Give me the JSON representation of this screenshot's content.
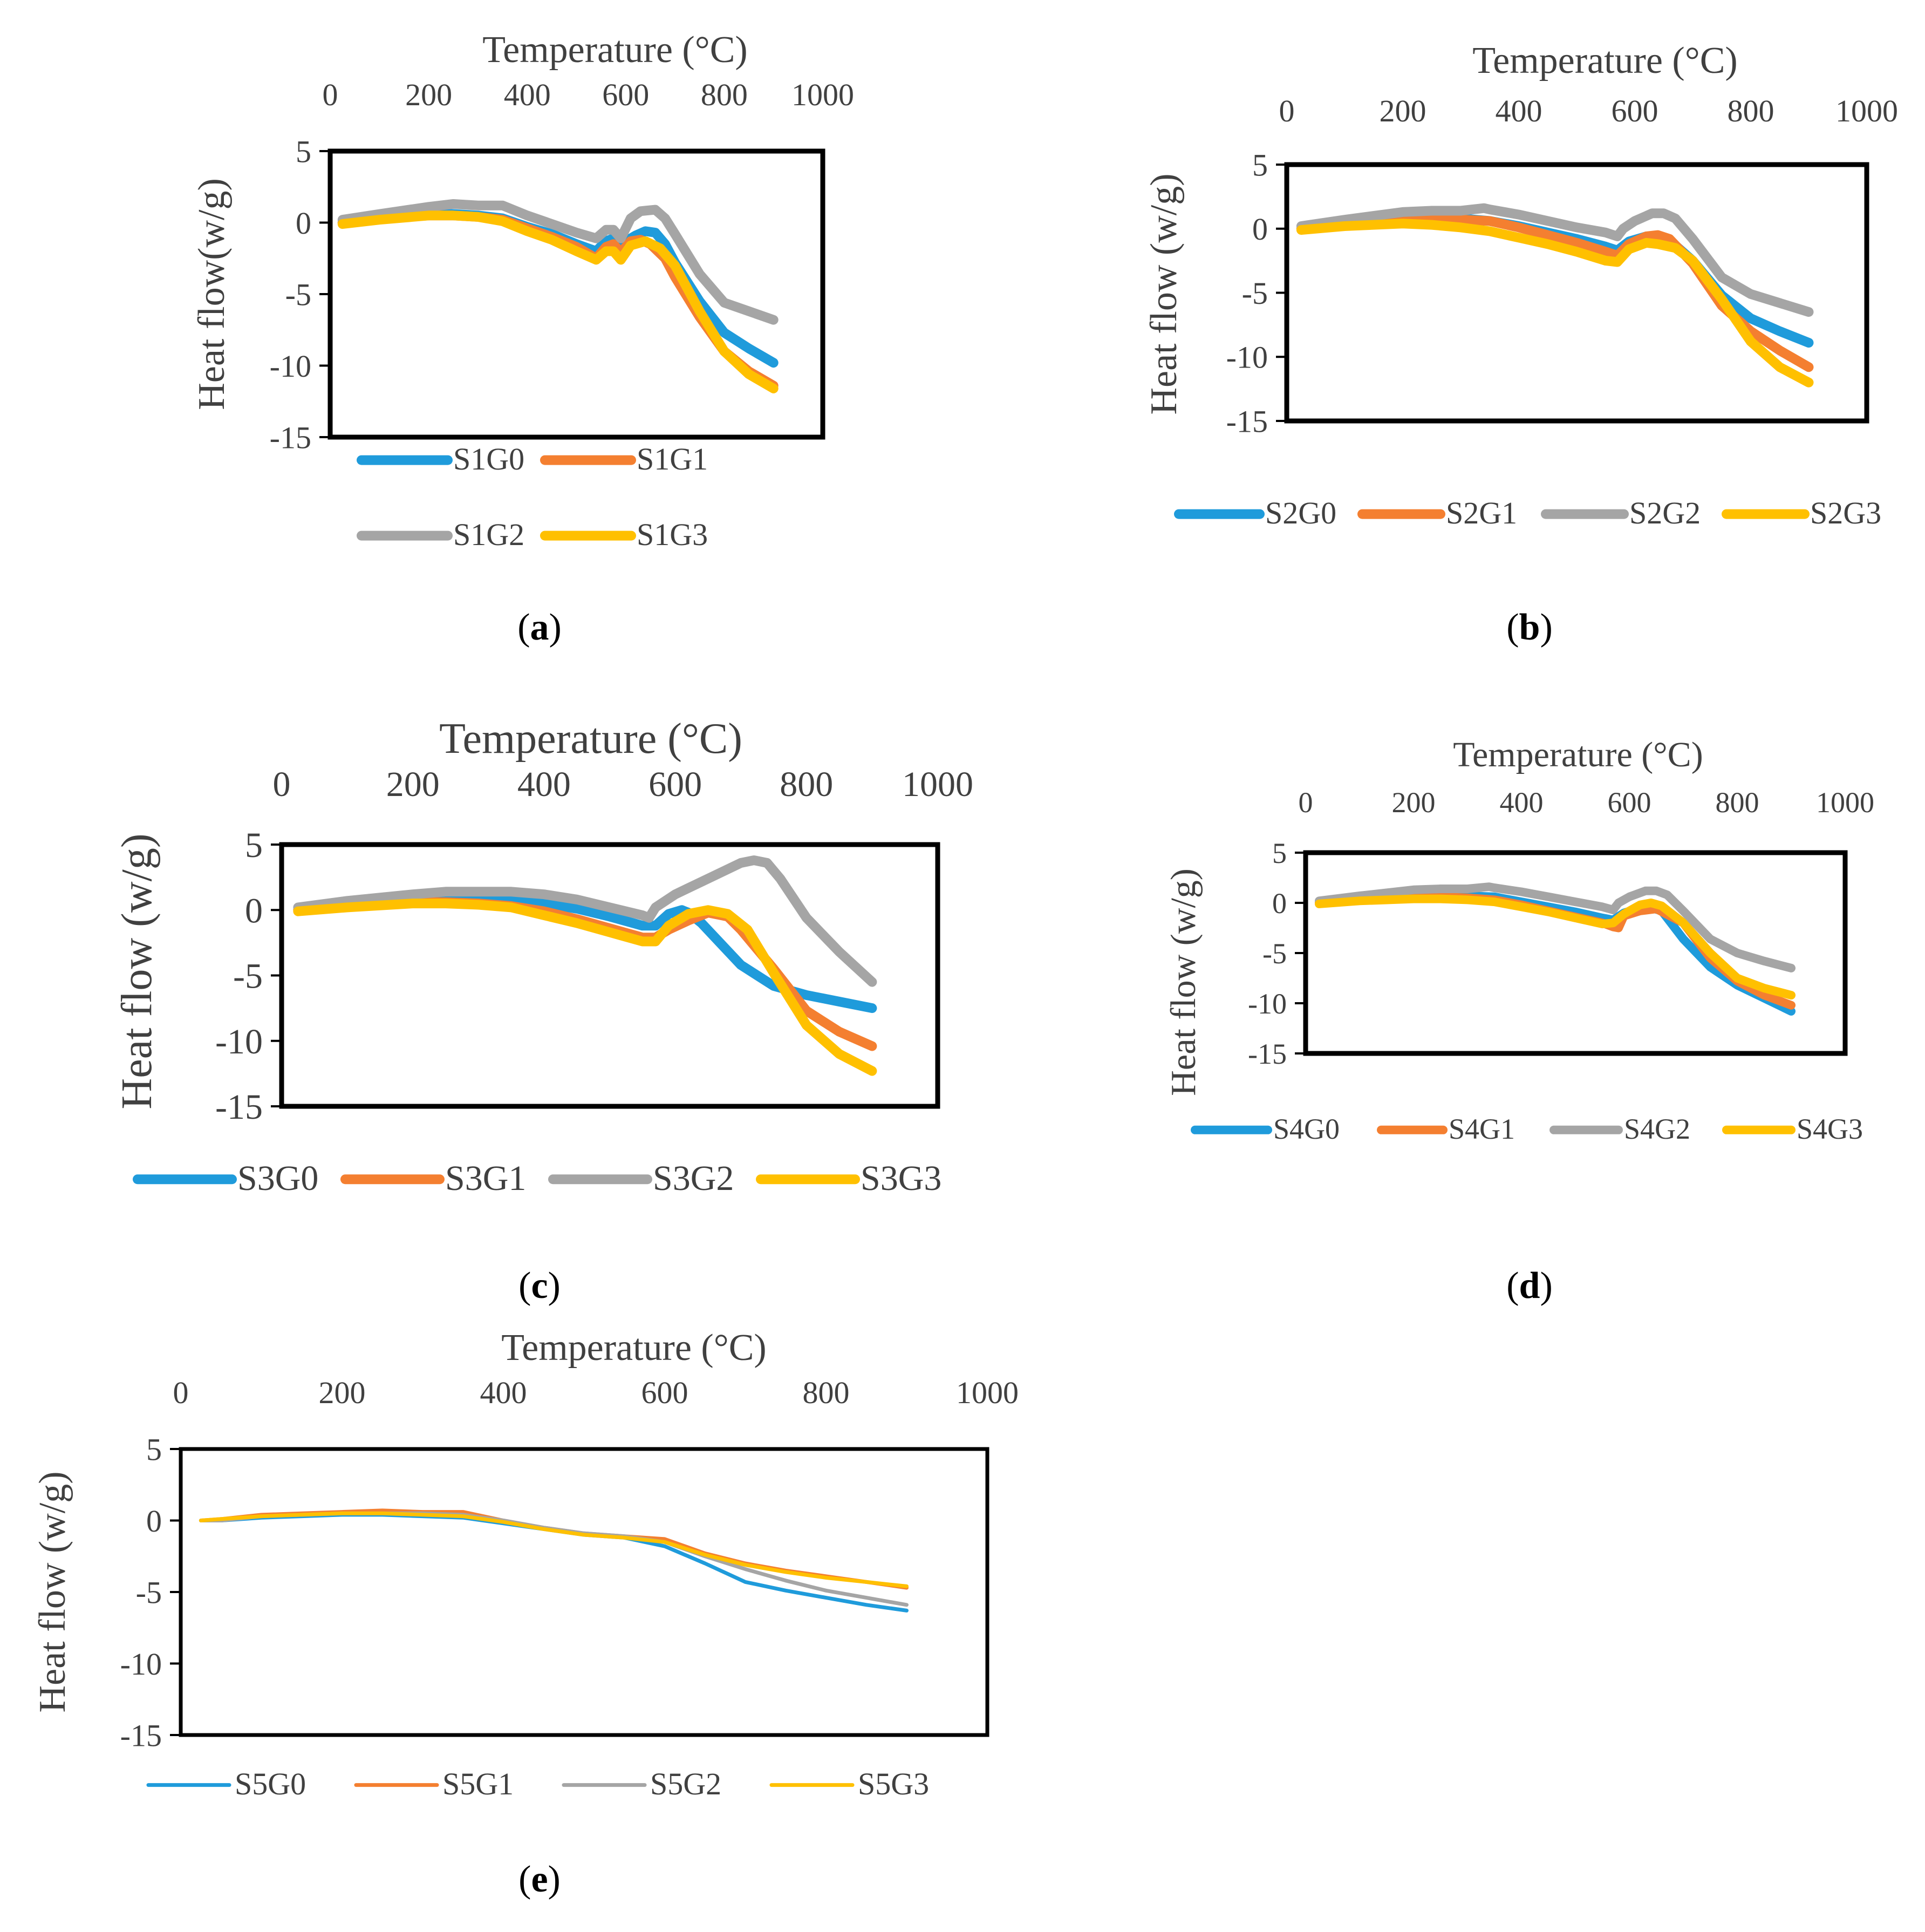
{
  "colors": {
    "G0": "#1F9BDB",
    "G1": "#F47F30",
    "G2": "#A5A5A5",
    "G3": "#FFC000",
    "frame": "#000000",
    "text": "#404040"
  },
  "chart_data": [
    {
      "type": "line",
      "panel": "(a)",
      "panel_letter": "a",
      "xlabel": "Temperature (°C)",
      "ylabel": "Heat flow(w/g)",
      "xlim": [
        0,
        1000
      ],
      "ylim": [
        -15,
        5
      ],
      "xticks": [
        "0",
        "200",
        "400",
        "600",
        "800",
        "1000"
      ],
      "yticks": [
        "5",
        "0",
        "-5",
        "-10",
        "-15"
      ],
      "series": [
        {
          "name": "S1G0",
          "x": [
            25,
            100,
            200,
            250,
            300,
            350,
            400,
            450,
            500,
            540,
            560,
            575,
            590,
            620,
            640,
            660,
            680,
            700,
            750,
            800,
            850,
            900
          ],
          "y": [
            0,
            0.3,
            0.6,
            0.6,
            0.5,
            0.3,
            -0.3,
            -0.8,
            -1.5,
            -2,
            -1.3,
            -1.1,
            -1.5,
            -0.9,
            -0.6,
            -0.7,
            -1.5,
            -2.8,
            -5.5,
            -7.7,
            -8.8,
            -9.8
          ]
        },
        {
          "name": "S1G1",
          "x": [
            25,
            100,
            200,
            250,
            300,
            350,
            400,
            450,
            500,
            540,
            560,
            575,
            590,
            610,
            630,
            650,
            680,
            700,
            750,
            800,
            850,
            900
          ],
          "y": [
            0,
            0.3,
            0.5,
            0.5,
            0.4,
            0.2,
            -0.4,
            -1,
            -1.7,
            -2.5,
            -1.7,
            -1.5,
            -2.1,
            -1.3,
            -1.2,
            -1.5,
            -2.5,
            -3.8,
            -6.6,
            -9,
            -10.4,
            -11.4
          ]
        },
        {
          "name": "S1G2",
          "x": [
            25,
            100,
            200,
            250,
            300,
            350,
            400,
            450,
            500,
            540,
            560,
            575,
            590,
            610,
            630,
            660,
            680,
            700,
            750,
            800,
            850,
            900
          ],
          "y": [
            0.2,
            0.6,
            1.1,
            1.3,
            1.2,
            1.2,
            0.5,
            -0.1,
            -0.7,
            -1.1,
            -0.5,
            -0.5,
            -1.1,
            0.3,
            0.8,
            0.9,
            0.3,
            -0.8,
            -3.6,
            -5.6,
            -6.2,
            -6.8
          ]
        },
        {
          "name": "S1G3",
          "x": [
            25,
            100,
            200,
            250,
            300,
            350,
            400,
            450,
            500,
            540,
            560,
            575,
            590,
            610,
            640,
            670,
            700,
            750,
            800,
            850,
            900
          ],
          "y": [
            -0.1,
            0.2,
            0.5,
            0.5,
            0.4,
            0.1,
            -0.6,
            -1.2,
            -2,
            -2.6,
            -2,
            -2,
            -2.6,
            -1.6,
            -1.3,
            -1.8,
            -3,
            -6.2,
            -9,
            -10.6,
            -11.6
          ]
        }
      ]
    },
    {
      "type": "line",
      "panel": "(b)",
      "panel_letter": "b",
      "xlabel": "Temperature (°C)",
      "ylabel": "Heat flow (w/g)",
      "xlim": [
        0,
        1000
      ],
      "ylim": [
        -15,
        5
      ],
      "xticks": [
        "0",
        "200",
        "400",
        "600",
        "800",
        "1000"
      ],
      "yticks": [
        "5",
        "0",
        "-5",
        "-10",
        "-15"
      ],
      "series": [
        {
          "name": "S2G0",
          "x": [
            25,
            100,
            200,
            250,
            300,
            350,
            400,
            450,
            500,
            550,
            570,
            590,
            620,
            640,
            660,
            700,
            750,
            800,
            850,
            900
          ],
          "y": [
            0,
            0.4,
            0.8,
            0.9,
            0.8,
            0.6,
            0.2,
            -0.3,
            -0.8,
            -1.4,
            -1.7,
            -1,
            -0.6,
            -0.6,
            -0.9,
            -2.5,
            -5.2,
            -7,
            -8,
            -8.9
          ]
        },
        {
          "name": "S2G1",
          "x": [
            25,
            100,
            200,
            250,
            300,
            350,
            400,
            450,
            500,
            550,
            570,
            590,
            620,
            640,
            660,
            700,
            750,
            800,
            850,
            900
          ],
          "y": [
            0,
            0.4,
            0.7,
            0.7,
            0.7,
            0.6,
            0.1,
            -0.5,
            -1.1,
            -1.8,
            -2.1,
            -1.2,
            -0.6,
            -0.5,
            -0.8,
            -2.7,
            -6,
            -8,
            -9.5,
            -10.8
          ]
        },
        {
          "name": "S2G2",
          "x": [
            25,
            100,
            200,
            250,
            300,
            340,
            350,
            400,
            450,
            500,
            550,
            570,
            580,
            600,
            630,
            650,
            670,
            700,
            750,
            800,
            850,
            900
          ],
          "y": [
            0.2,
            0.7,
            1.3,
            1.4,
            1.4,
            1.6,
            1.5,
            1.1,
            0.6,
            0.1,
            -0.3,
            -0.6,
            0,
            0.6,
            1.2,
            1.2,
            0.8,
            -0.8,
            -3.8,
            -5.1,
            -5.8,
            -6.5
          ]
        },
        {
          "name": "S2G3",
          "x": [
            25,
            100,
            200,
            250,
            300,
            350,
            400,
            450,
            500,
            550,
            570,
            590,
            620,
            640,
            670,
            700,
            750,
            800,
            850,
            900
          ],
          "y": [
            -0.1,
            0.2,
            0.4,
            0.3,
            0.1,
            -0.2,
            -0.7,
            -1.2,
            -1.8,
            -2.5,
            -2.6,
            -1.6,
            -1.1,
            -1.2,
            -1.5,
            -2.5,
            -5.5,
            -8.8,
            -10.8,
            -12
          ]
        }
      ]
    },
    {
      "type": "line",
      "panel": "(c)",
      "panel_letter": "c",
      "xlabel": "Temperature (°C)",
      "ylabel": "Heat flow (w/g)",
      "xlim": [
        0,
        1000
      ],
      "ylim": [
        -15,
        5
      ],
      "xticks": [
        "0",
        "200",
        "400",
        "600",
        "800",
        "1000"
      ],
      "yticks": [
        "5",
        "0",
        "-5",
        "-10",
        "-15"
      ],
      "series": [
        {
          "name": "S3G0",
          "x": [
            25,
            100,
            200,
            250,
            300,
            350,
            400,
            450,
            500,
            550,
            570,
            590,
            610,
            620,
            640,
            670,
            700,
            750,
            800,
            850,
            900
          ],
          "y": [
            0,
            0.4,
            0.8,
            0.9,
            0.9,
            0.8,
            0.5,
            0.1,
            -0.5,
            -1.2,
            -1.2,
            -0.3,
            0,
            -0.2,
            -1,
            -2.6,
            -4.2,
            -5.8,
            -6.5,
            -7,
            -7.5
          ]
        },
        {
          "name": "S3G1",
          "x": [
            25,
            100,
            200,
            250,
            300,
            350,
            400,
            450,
            500,
            550,
            570,
            590,
            620,
            650,
            680,
            700,
            750,
            800,
            850,
            900
          ],
          "y": [
            0,
            0.3,
            0.6,
            0.6,
            0.5,
            0.3,
            -0.1,
            -0.7,
            -1.4,
            -2.1,
            -2.1,
            -1.5,
            -0.8,
            -0.2,
            -0.5,
            -1.5,
            -4.5,
            -7.7,
            -9.3,
            -10.4
          ]
        },
        {
          "name": "S3G2",
          "x": [
            25,
            100,
            200,
            250,
            300,
            350,
            400,
            450,
            500,
            550,
            560,
            570,
            600,
            650,
            700,
            720,
            740,
            760,
            800,
            850,
            900
          ],
          "y": [
            0.2,
            0.7,
            1.2,
            1.4,
            1.4,
            1.4,
            1.2,
            0.8,
            0.2,
            -0.4,
            -0.6,
            0.2,
            1.2,
            2.4,
            3.6,
            3.8,
            3.6,
            2.4,
            -0.6,
            -3.2,
            -5.5
          ]
        },
        {
          "name": "S3G3",
          "x": [
            25,
            100,
            200,
            250,
            300,
            350,
            400,
            450,
            500,
            550,
            570,
            590,
            620,
            650,
            680,
            710,
            750,
            800,
            850,
            900
          ],
          "y": [
            -0.1,
            0.2,
            0.5,
            0.5,
            0.4,
            0.2,
            -0.4,
            -1,
            -1.7,
            -2.4,
            -2.4,
            -1.2,
            -0.3,
            0,
            -0.3,
            -1.5,
            -4.8,
            -8.8,
            -11,
            -12.3
          ]
        }
      ]
    },
    {
      "type": "line",
      "panel": "(d)",
      "panel_letter": "d",
      "xlabel": "Temperature (°C)",
      "ylabel": "Heat flow (w/g)",
      "xlim": [
        0,
        1000
      ],
      "ylim": [
        -15,
        5
      ],
      "xticks": [
        "0",
        "200",
        "400",
        "600",
        "800",
        "1000"
      ],
      "yticks": [
        "5",
        "0",
        "-5",
        "-10",
        "-15"
      ],
      "series": [
        {
          "name": "S4G0",
          "x": [
            25,
            100,
            200,
            250,
            300,
            350,
            400,
            450,
            500,
            550,
            570,
            590,
            620,
            640,
            660,
            700,
            750,
            800,
            850,
            900
          ],
          "y": [
            0,
            0.4,
            0.7,
            0.7,
            0.7,
            0.6,
            0.1,
            -0.4,
            -0.9,
            -1.5,
            -1.7,
            -1,
            -0.5,
            -0.5,
            -0.8,
            -3.6,
            -6.4,
            -8.2,
            -9.5,
            -10.8
          ]
        },
        {
          "name": "S4G1",
          "x": [
            25,
            100,
            200,
            250,
            300,
            350,
            400,
            450,
            500,
            550,
            570,
            580,
            590,
            620,
            650,
            700,
            750,
            800,
            850,
            900
          ],
          "y": [
            0,
            0.3,
            0.6,
            0.6,
            0.5,
            0.3,
            -0.2,
            -0.8,
            -1.4,
            -2,
            -2.4,
            -2.5,
            -1.3,
            -0.8,
            -0.6,
            -2,
            -5.5,
            -7.8,
            -9.2,
            -10.2
          ]
        },
        {
          "name": "S4G2",
          "x": [
            25,
            100,
            200,
            250,
            300,
            340,
            350,
            400,
            450,
            500,
            550,
            570,
            580,
            600,
            630,
            650,
            670,
            700,
            750,
            800,
            850,
            900
          ],
          "y": [
            0.2,
            0.7,
            1.3,
            1.4,
            1.4,
            1.6,
            1.5,
            1.1,
            0.6,
            0.1,
            -0.4,
            -0.7,
            0,
            0.6,
            1.2,
            1.2,
            0.8,
            -0.8,
            -3.6,
            -5,
            -5.8,
            -6.5
          ]
        },
        {
          "name": "S4G3",
          "x": [
            25,
            100,
            200,
            250,
            300,
            350,
            400,
            450,
            500,
            550,
            570,
            590,
            620,
            640,
            660,
            700,
            750,
            800,
            850,
            900
          ],
          "y": [
            -0.1,
            0.2,
            0.4,
            0.4,
            0.3,
            0.1,
            -0.4,
            -0.9,
            -1.5,
            -2.1,
            -2,
            -1.1,
            -0.2,
            0,
            -0.3,
            -2,
            -5,
            -7.5,
            -8.5,
            -9.2
          ]
        }
      ]
    },
    {
      "type": "line",
      "panel": "(e)",
      "panel_letter": "e",
      "xlabel": "Temperature (°C)",
      "ylabel": "Heat flow (w/g)",
      "xlim": [
        0,
        1000
      ],
      "ylim": [
        -15,
        5
      ],
      "xticks": [
        "0",
        "200",
        "400",
        "600",
        "800",
        "1000"
      ],
      "yticks": [
        "5",
        "0",
        "-5",
        "-10",
        "-15"
      ],
      "series": [
        {
          "name": "S5G0",
          "x": [
            25,
            50,
            100,
            150,
            200,
            250,
            300,
            350,
            400,
            450,
            500,
            550,
            600,
            650,
            700,
            750,
            800,
            850,
            900
          ],
          "y": [
            0,
            0,
            0.2,
            0.3,
            0.4,
            0.4,
            0.3,
            0.2,
            -0.2,
            -0.6,
            -1,
            -1.2,
            -1.8,
            -3,
            -4.3,
            -4.9,
            -5.4,
            -5.9,
            -6.3
          ]
        },
        {
          "name": "S5G1",
          "x": [
            25,
            50,
            100,
            150,
            200,
            250,
            300,
            350,
            400,
            450,
            500,
            550,
            600,
            650,
            700,
            750,
            800,
            850,
            900
          ],
          "y": [
            0,
            0.1,
            0.4,
            0.5,
            0.6,
            0.7,
            0.6,
            0.6,
            0,
            -0.5,
            -0.9,
            -1.1,
            -1.3,
            -2.3,
            -3,
            -3.5,
            -3.9,
            -4.3,
            -4.7
          ]
        },
        {
          "name": "S5G2",
          "x": [
            25,
            50,
            100,
            150,
            200,
            250,
            300,
            350,
            400,
            450,
            500,
            550,
            600,
            650,
            700,
            750,
            800,
            850,
            900
          ],
          "y": [
            0,
            0,
            0.3,
            0.4,
            0.5,
            0.5,
            0.5,
            0.4,
            0,
            -0.5,
            -0.9,
            -1.1,
            -1.5,
            -2.5,
            -3.4,
            -4.2,
            -4.9,
            -5.4,
            -5.9
          ]
        },
        {
          "name": "S5G3",
          "x": [
            25,
            50,
            100,
            150,
            200,
            250,
            300,
            350,
            400,
            450,
            500,
            550,
            600,
            650,
            700,
            750,
            800,
            850,
            900
          ],
          "y": [
            0,
            0.1,
            0.3,
            0.4,
            0.5,
            0.5,
            0.4,
            0.3,
            -0.1,
            -0.6,
            -1,
            -1.2,
            -1.5,
            -2.4,
            -3.1,
            -3.6,
            -4,
            -4.3,
            -4.6
          ]
        }
      ]
    }
  ]
}
